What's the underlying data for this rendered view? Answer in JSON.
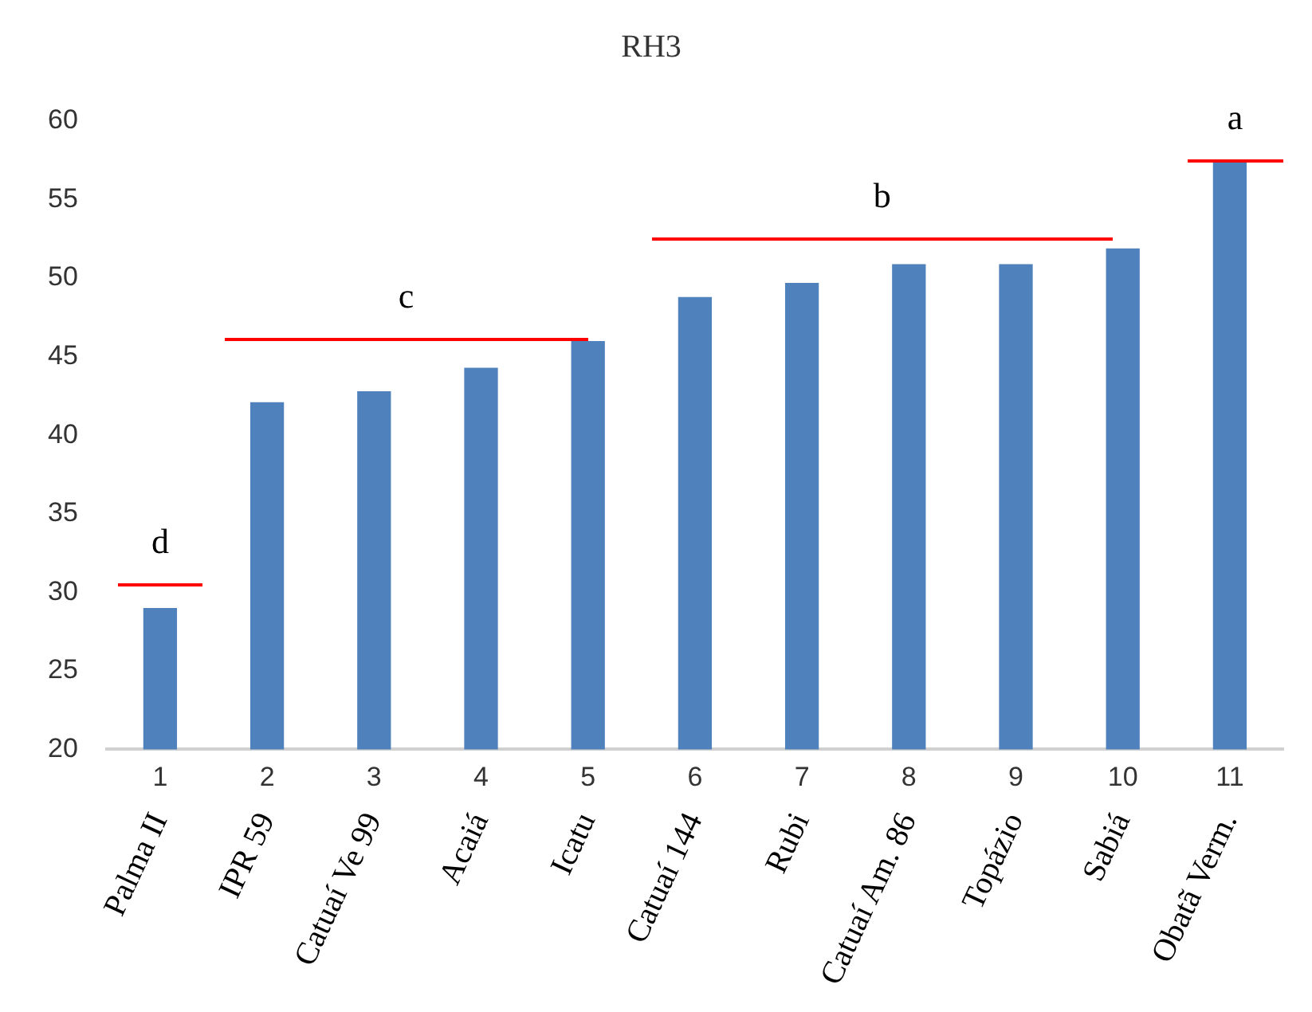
{
  "chart_data": {
    "type": "bar",
    "title": "RH3",
    "x": [
      1,
      2,
      3,
      4,
      5,
      6,
      7,
      8,
      9,
      10,
      11
    ],
    "xlim": [
      0.5,
      11.5
    ],
    "xticks": [
      1,
      2,
      3,
      4,
      5,
      6,
      7,
      8,
      9,
      10,
      11
    ],
    "values": [
      29.0,
      42.1,
      42.8,
      44.3,
      46.0,
      48.8,
      49.7,
      50.9,
      50.9,
      51.9,
      57.4
    ],
    "color": "#4f81bd",
    "ylim": [
      20,
      60
    ],
    "yticks": [
      20,
      25,
      30,
      35,
      40,
      45,
      50,
      55,
      60
    ],
    "grid": false,
    "legend": false,
    "annotations": [
      "Palma II",
      "IPR 59",
      "Catuaí Ve 99",
      "Acaiá",
      "Icatu",
      "Catuaí 144",
      "Rubi",
      "Catuaí Am. 86",
      "Topázio",
      "Sabiá",
      "Obatã Verm.",
      "d",
      "c",
      "b",
      "a"
    ]
  }
}
